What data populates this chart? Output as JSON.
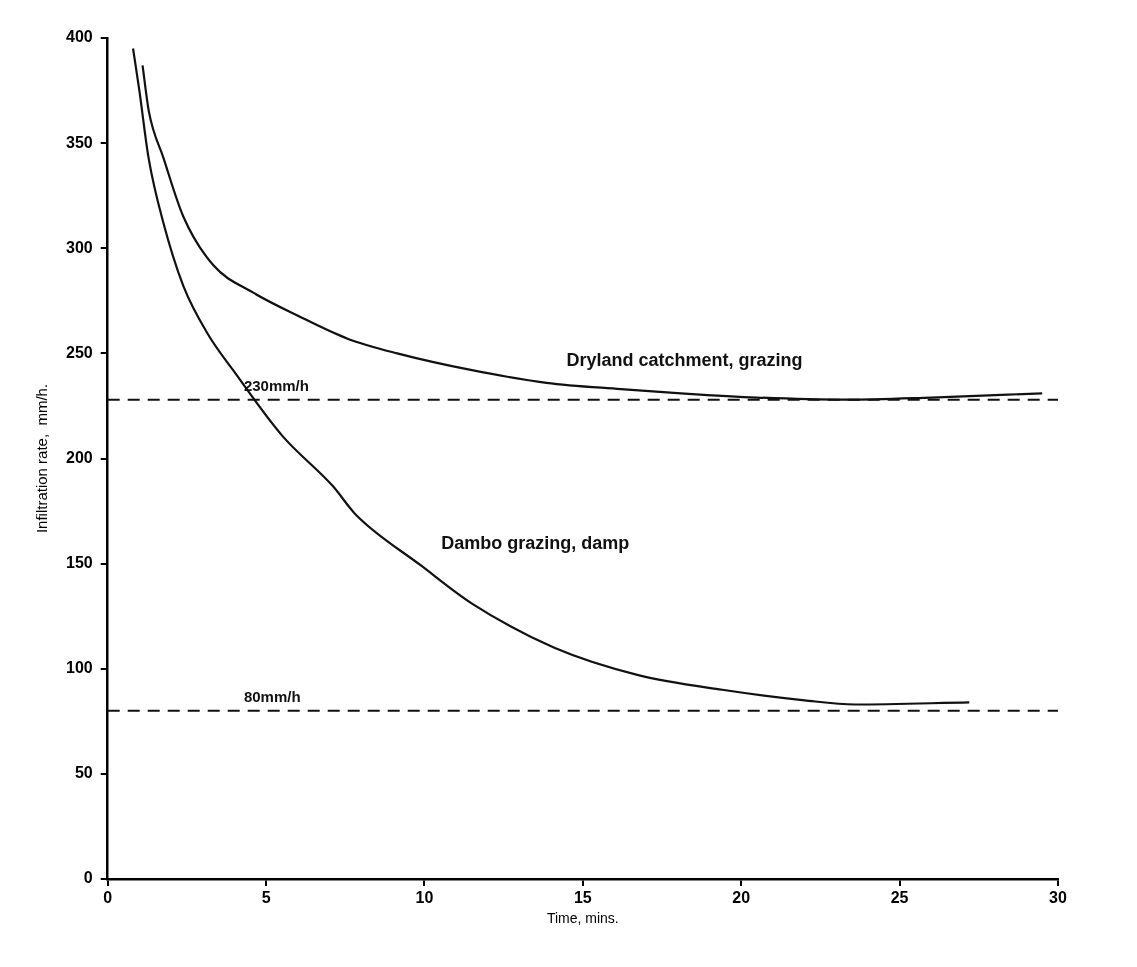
{
  "chart_data": {
    "type": "line",
    "xlabel": "Time, mins.",
    "ylabel": "Infiltration rate,  mm/h.",
    "xlim": [
      0,
      30
    ],
    "ylim": [
      0,
      400
    ],
    "xticks": [
      0,
      5,
      10,
      15,
      20,
      25,
      30
    ],
    "yticks": [
      0,
      50,
      100,
      150,
      200,
      250,
      300,
      350,
      400
    ],
    "grid": false,
    "legend": false,
    "marker": "none",
    "line_style": "solid",
    "series": [
      {
        "name": "Dryland catchment, grazing",
        "color": "#111111",
        "x": [
          1.1,
          1.3,
          1.76,
          2.39,
          3.33,
          4.58,
          5.99,
          7.57,
          9.14,
          11.5,
          13.85,
          16.2,
          18.1,
          20.5,
          23.3,
          26,
          29.5
        ],
        "values": [
          387,
          365,
          343,
          315,
          292,
          279,
          268,
          257,
          250,
          242,
          236,
          233,
          231,
          229,
          228,
          229,
          231
        ]
      },
      {
        "name": "Dambo grazing, damp",
        "color": "#111111",
        "x": [
          0.8,
          1.0,
          1.29,
          1.76,
          2.39,
          3.17,
          3.96,
          5.5,
          7.1,
          7.85,
          9.9,
          11.5,
          14.1,
          16.75,
          19.4,
          22,
          23.6,
          27.2
        ],
        "values": [
          395,
          375,
          343,
          312,
          282,
          259,
          242,
          211,
          187,
          173,
          149,
          131,
          110,
          97,
          90,
          85,
          83,
          84
        ]
      }
    ],
    "ref_lines": [
      {
        "axis": "y",
        "value": 228,
        "label": "230mm/h",
        "line_style": "dashed",
        "color": "#111111"
      },
      {
        "axis": "y",
        "value": 80,
        "label": "80mm/h",
        "line_style": "dashed",
        "color": "#111111"
      }
    ]
  }
}
